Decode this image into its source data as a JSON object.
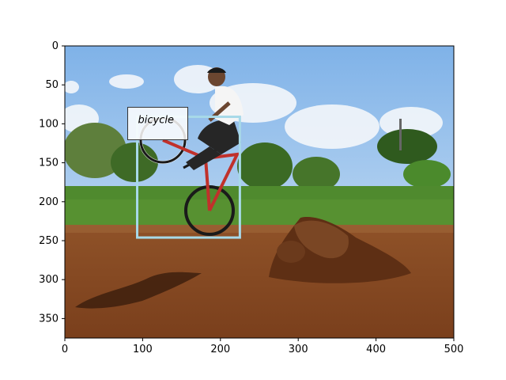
{
  "figure": {
    "axes": {
      "xlim": [
        0,
        500
      ],
      "ylim": [
        375,
        0
      ],
      "x_ticks": [
        0,
        100,
        200,
        300,
        400,
        500
      ],
      "y_ticks": [
        0,
        50,
        100,
        150,
        200,
        250,
        300,
        350
      ]
    },
    "image": {
      "subject": "person performing a wheelie on a BMX bicycle over a dirt track with a dirt mound",
      "colors": {
        "sky_top": "#7fb2e8",
        "sky_bottom": "#d8e8f6",
        "grass": "#4f8a2e",
        "dirt": "#8b4a22",
        "dirt_dark": "#5e2f14"
      }
    },
    "annotation": {
      "label": "bicycle",
      "box": {
        "x_min": 93,
        "y_min": 91,
        "x_max": 225,
        "y_max": 246
      },
      "box_color": "#a7d9e8",
      "label_box_color": "#ffffff"
    }
  }
}
